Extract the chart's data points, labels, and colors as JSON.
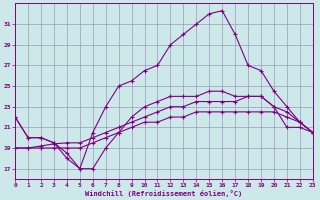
{
  "xlabel": "Windchill (Refroidissement éolien,°C)",
  "bg_color": "#cce8e8",
  "line_color": "#800080",
  "grid_color": "#9999bb",
  "line1_y": [
    22.0,
    20.0,
    20.0,
    19.5,
    18.0,
    17.0,
    17.0,
    19.0,
    20.5,
    22.0,
    23.0,
    23.5,
    24.0,
    24.0,
    24.0,
    24.5,
    24.5,
    24.0,
    24.0,
    24.0,
    23.0,
    21.0,
    21.0,
    20.5
  ],
  "line2_y": [
    19.0,
    19.0,
    19.2,
    19.4,
    19.5,
    19.5,
    20.0,
    20.5,
    21.0,
    21.5,
    22.0,
    22.5,
    23.0,
    23.0,
    23.5,
    23.5,
    23.5,
    23.5,
    24.0,
    24.0,
    23.0,
    22.5,
    21.5,
    20.5
  ],
  "line3_y": [
    19.0,
    19.0,
    19.0,
    19.0,
    19.0,
    19.0,
    19.5,
    20.0,
    20.5,
    21.0,
    21.5,
    21.5,
    22.0,
    22.0,
    22.5,
    22.5,
    22.5,
    22.5,
    22.5,
    22.5,
    22.5,
    22.0,
    21.5,
    20.5
  ],
  "line4_y": [
    22.0,
    20.0,
    20.0,
    19.5,
    18.5,
    17.0,
    20.5,
    23.0,
    25.0,
    25.5,
    26.5,
    27.0,
    29.0,
    30.0,
    31.0,
    32.0,
    32.3,
    30.0,
    27.0,
    26.5,
    24.5,
    23.0,
    21.5,
    20.5
  ],
  "ylim": [
    16,
    33
  ],
  "yticks": [
    17,
    19,
    21,
    23,
    25,
    27,
    29,
    31
  ],
  "xlim": [
    0,
    23
  ],
  "xticks": [
    0,
    1,
    2,
    3,
    4,
    5,
    6,
    7,
    8,
    9,
    10,
    11,
    12,
    13,
    14,
    15,
    16,
    17,
    18,
    19,
    20,
    21,
    22,
    23
  ],
  "figsize": [
    3.2,
    2.0
  ],
  "dpi": 100
}
